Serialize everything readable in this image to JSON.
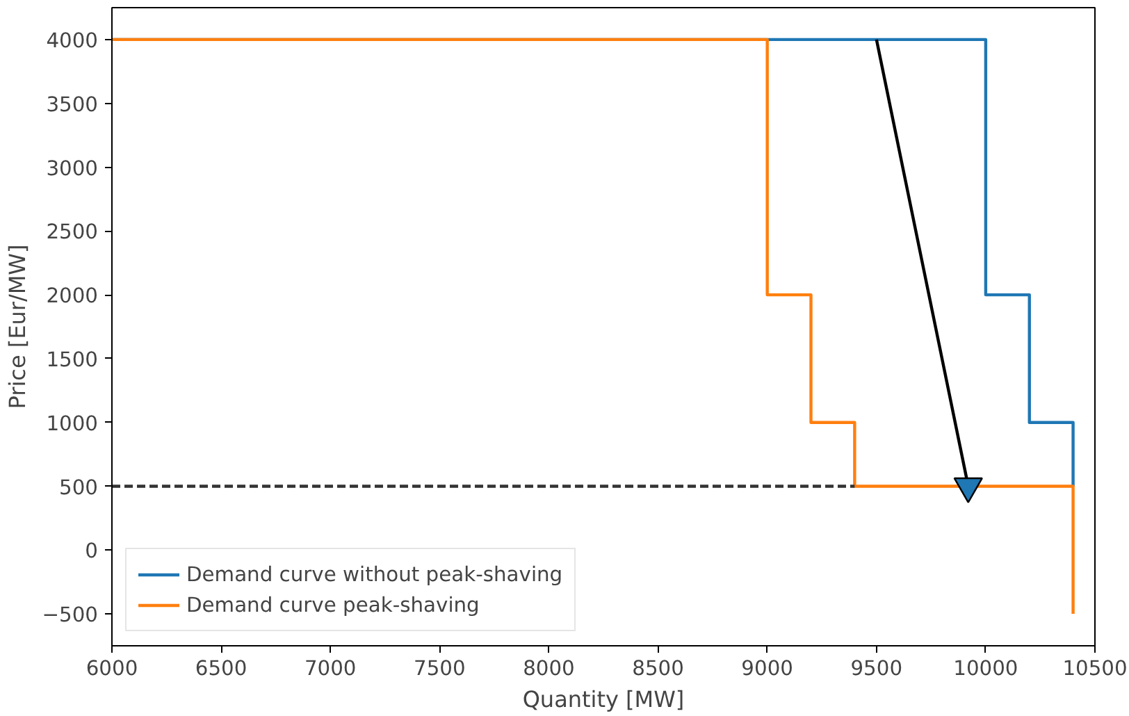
{
  "chart_data": {
    "type": "step",
    "xlabel": "Quantity [MW]",
    "ylabel": "Price [Eur/MW]",
    "xlim": [
      6000,
      10500
    ],
    "ylim": [
      -750,
      4250
    ],
    "xticks": [
      6000,
      6500,
      7000,
      7500,
      8000,
      8500,
      9000,
      9500,
      10000,
      10500
    ],
    "yticks": [
      -500,
      0,
      500,
      1000,
      1500,
      2000,
      2500,
      3000,
      3500,
      4000
    ],
    "grid": false,
    "legend": "bottom left",
    "series": [
      {
        "name": "Demand curve without peak-shaving",
        "color": "#1f77b4",
        "x": [
          6000,
          10000,
          10000,
          10200,
          10200,
          10400,
          10400
        ],
        "values": [
          4000,
          4000,
          2000,
          2000,
          1000,
          1000,
          500
        ]
      },
      {
        "name": "Demand curve peak-shaving",
        "color": "#ff7f0e",
        "x": [
          6000,
          9000,
          9000,
          9200,
          9200,
          9400,
          9400,
          10400,
          10400
        ],
        "values": [
          4000,
          4000,
          2000,
          2000,
          1000,
          1000,
          500,
          500,
          -500
        ]
      },
      {
        "type": "line",
        "color": "#333333",
        "line_style": "dashed",
        "x": [
          6000,
          9400
        ],
        "values": [
          500,
          500
        ]
      },
      {
        "type": "line",
        "color": "#000000",
        "marker": "triangle",
        "x": [
          9500,
          9920
        ],
        "values": [
          4000,
          500
        ]
      }
    ]
  }
}
